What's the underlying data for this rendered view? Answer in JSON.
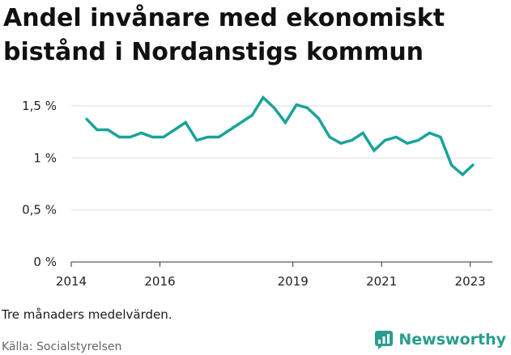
{
  "title": "Andel invånare med ekonomiskt bistånd i Nordanstigs kommun",
  "note": "Tre månaders medelvärden.",
  "source": "Källa: Socialstyrelsen",
  "brand": {
    "name": "Newsworthy",
    "icon": "newsworthy-logo-icon",
    "color": "#2a9d8f"
  },
  "colors": {
    "line": "#1aa39a",
    "grid": "#dddddd",
    "axis": "#333333"
  },
  "chart_data": {
    "type": "line",
    "title": "Andel invånare med ekonomiskt bistånd i Nordanstigs kommun",
    "xlabel": "",
    "ylabel": "",
    "ylim": [
      0,
      1.6
    ],
    "xlim": [
      2014,
      2023.5
    ],
    "grid": true,
    "y_ticks": [
      {
        "value": 0,
        "label": "0 %"
      },
      {
        "value": 0.5,
        "label": "0,5 %"
      },
      {
        "value": 1,
        "label": "1 %"
      },
      {
        "value": 1.5,
        "label": "1,5 %"
      }
    ],
    "x_ticks": [
      {
        "value": 2014,
        "label": "2014"
      },
      {
        "value": 2016,
        "label": "2016"
      },
      {
        "value": 2019,
        "label": "2019"
      },
      {
        "value": 2021,
        "label": "2021"
      },
      {
        "value": 2023,
        "label": "2023"
      }
    ],
    "series": [
      {
        "name": "Andel invånare med ekonomiskt bistånd",
        "x": [
          2014.33,
          2014.58,
          2014.83,
          2015.08,
          2015.33,
          2015.58,
          2015.83,
          2016.08,
          2016.33,
          2016.58,
          2016.83,
          2017.08,
          2017.33,
          2017.58,
          2017.83,
          2018.08,
          2018.33,
          2018.58,
          2018.83,
          2019.08,
          2019.33,
          2019.58,
          2019.83,
          2020.08,
          2020.33,
          2020.58,
          2020.83,
          2021.08,
          2021.33,
          2021.58,
          2021.83,
          2022.08,
          2022.33,
          2022.58,
          2022.83,
          2023.08
        ],
        "values": [
          1.38,
          1.27,
          1.27,
          1.2,
          1.2,
          1.24,
          1.2,
          1.2,
          1.27,
          1.34,
          1.17,
          1.2,
          1.2,
          1.27,
          1.34,
          1.41,
          1.58,
          1.48,
          1.34,
          1.51,
          1.48,
          1.38,
          1.2,
          1.14,
          1.17,
          1.24,
          1.07,
          1.17,
          1.2,
          1.14,
          1.17,
          1.24,
          1.2,
          0.93,
          0.84,
          0.94
        ]
      }
    ]
  }
}
